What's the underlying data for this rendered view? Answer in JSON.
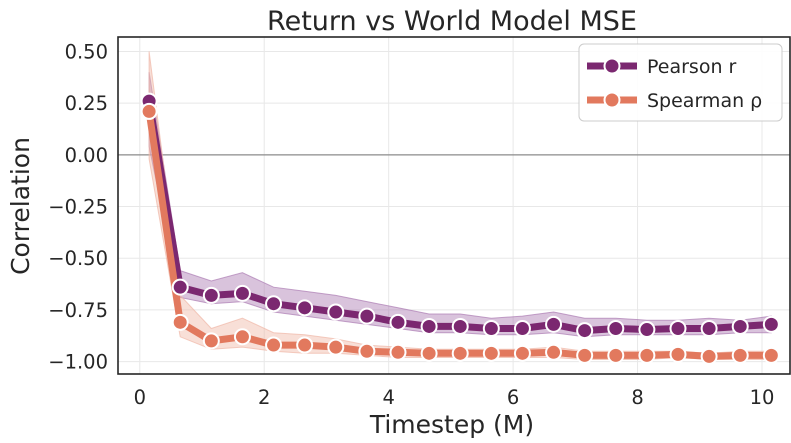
{
  "chart_data": {
    "type": "line",
    "title": "Return vs World Model MSE",
    "xlabel": "Timestep (M)",
    "ylabel": "Correlation",
    "xlim": [
      -0.35,
      10.45
    ],
    "ylim": [
      -1.06,
      0.57
    ],
    "x_ticks": [
      0,
      2,
      4,
      6,
      8,
      10
    ],
    "x_tick_labels": [
      "0",
      "2",
      "4",
      "6",
      "8",
      "10"
    ],
    "y_ticks": [
      0.5,
      0.25,
      0.0,
      -0.25,
      -0.5,
      -0.75,
      -1.0
    ],
    "y_tick_labels": [
      "0.50",
      "0.25",
      "0.00",
      "−0.25",
      "−0.50",
      "−0.75",
      "−1.00"
    ],
    "grid": true,
    "reference_line_y": 0,
    "legend_position": "top-right",
    "x": [
      0.15,
      0.65,
      1.15,
      1.65,
      2.15,
      2.65,
      3.15,
      3.65,
      4.15,
      4.65,
      5.15,
      5.65,
      6.15,
      6.65,
      7.15,
      7.65,
      8.15,
      8.65,
      9.15,
      9.65,
      10.15
    ],
    "series": [
      {
        "name": "Pearson r",
        "color": "#7b2870",
        "band_color": "#ab7ab2",
        "values": [
          0.26,
          -0.64,
          -0.68,
          -0.67,
          -0.72,
          -0.74,
          -0.76,
          -0.78,
          -0.81,
          -0.83,
          -0.83,
          -0.84,
          -0.84,
          -0.82,
          -0.85,
          -0.84,
          -0.845,
          -0.84,
          -0.84,
          -0.83,
          -0.82
        ],
        "lower": [
          0.04,
          -0.69,
          -0.72,
          -0.71,
          -0.76,
          -0.78,
          -0.8,
          -0.82,
          -0.84,
          -0.86,
          -0.86,
          -0.87,
          -0.87,
          -0.86,
          -0.88,
          -0.87,
          -0.87,
          -0.87,
          -0.87,
          -0.86,
          -0.86
        ],
        "upper": [
          0.4,
          -0.56,
          -0.61,
          -0.57,
          -0.64,
          -0.66,
          -0.68,
          -0.71,
          -0.74,
          -0.77,
          -0.77,
          -0.79,
          -0.78,
          -0.76,
          -0.79,
          -0.79,
          -0.8,
          -0.8,
          -0.79,
          -0.8,
          -0.78
        ]
      },
      {
        "name": "Spearman ρ",
        "color": "#e2795e",
        "band_color": "#f0b7a6",
        "values": [
          0.21,
          -0.81,
          -0.9,
          -0.88,
          -0.92,
          -0.92,
          -0.93,
          -0.95,
          -0.955,
          -0.96,
          -0.96,
          -0.96,
          -0.96,
          -0.955,
          -0.97,
          -0.97,
          -0.97,
          -0.965,
          -0.975,
          -0.97,
          -0.97
        ],
        "lower": [
          -0.02,
          -0.88,
          -0.94,
          -0.93,
          -0.95,
          -0.96,
          -0.96,
          -0.97,
          -0.98,
          -0.98,
          -0.98,
          -0.98,
          -0.98,
          -0.98,
          -0.99,
          -0.99,
          -0.99,
          -0.98,
          -0.99,
          -0.99,
          -0.99
        ],
        "upper": [
          0.5,
          -0.68,
          -0.84,
          -0.79,
          -0.86,
          -0.87,
          -0.89,
          -0.92,
          -0.93,
          -0.94,
          -0.94,
          -0.94,
          -0.94,
          -0.93,
          -0.95,
          -0.95,
          -0.95,
          -0.95,
          -0.96,
          -0.95,
          -0.95
        ]
      }
    ]
  }
}
